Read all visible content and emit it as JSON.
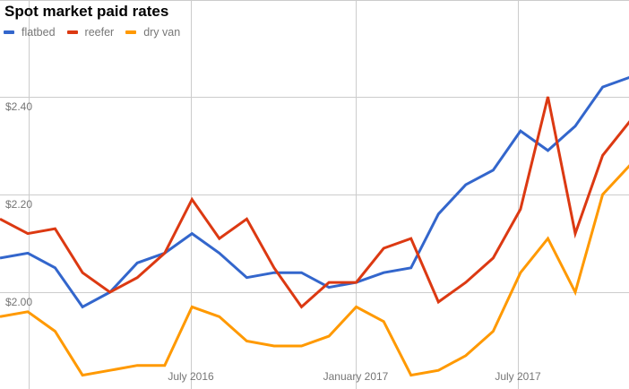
{
  "title": "Spot market paid rates",
  "legend": [
    {
      "label": "flatbed",
      "color": "#3366CC"
    },
    {
      "label": "reefer",
      "color": "#DC3912"
    },
    {
      "label": "dry van",
      "color": "#FF9900"
    }
  ],
  "y_ticks": [
    "$2.00",
    "$2.20",
    "$2.40"
  ],
  "x_ticks": [
    "July 2016",
    "January 2017",
    "July 2017"
  ],
  "chart_data": {
    "type": "line",
    "title": "Spot market paid rates",
    "xlabel": "",
    "ylabel": "",
    "x": [
      "2016-01",
      "2016-02",
      "2016-03",
      "2016-04",
      "2016-05",
      "2016-06",
      "2016-07",
      "2016-08",
      "2016-09",
      "2016-10",
      "2016-11",
      "2016-12",
      "2017-01",
      "2017-02",
      "2017-03",
      "2017-04",
      "2017-05",
      "2017-06",
      "2017-07",
      "2017-08",
      "2017-09",
      "2017-10",
      "2017-11"
    ],
    "x_tick_labels": [
      "July 2016",
      "January 2017",
      "July 2017"
    ],
    "y_tick_labels": [
      "$2.00",
      "$2.20",
      "$2.40"
    ],
    "series": [
      {
        "name": "flatbed",
        "color": "#3366CC",
        "values": [
          2.08,
          2.05,
          1.97,
          2.0,
          2.06,
          2.08,
          2.12,
          2.08,
          2.03,
          2.04,
          2.04,
          2.01,
          2.02,
          2.04,
          2.05,
          2.16,
          2.22,
          2.25,
          2.33,
          2.29,
          2.34,
          2.42,
          2.44
        ]
      },
      {
        "name": "reefer",
        "color": "#DC3912",
        "values": [
          2.12,
          2.13,
          2.04,
          2.0,
          2.03,
          2.08,
          2.19,
          2.11,
          2.15,
          2.05,
          1.97,
          2.02,
          2.02,
          2.09,
          2.11,
          1.98,
          2.02,
          2.07,
          2.17,
          2.4,
          2.12,
          2.28,
          2.35
        ]
      },
      {
        "name": "dry van",
        "color": "#FF9900",
        "values": [
          1.96,
          1.92,
          1.83,
          1.84,
          1.85,
          1.85,
          1.97,
          1.95,
          1.9,
          1.89,
          1.89,
          1.91,
          1.97,
          1.94,
          1.83,
          1.84,
          1.87,
          1.92,
          2.04,
          2.11,
          2.0,
          2.2,
          2.26
        ]
      }
    ],
    "leading_partial_point": {
      "flatbed": 2.07,
      "reefer": 2.15,
      "dry van": 1.95
    },
    "ylim": [
      1.8,
      2.6
    ],
    "grid": true,
    "legend_position": "top-left"
  }
}
